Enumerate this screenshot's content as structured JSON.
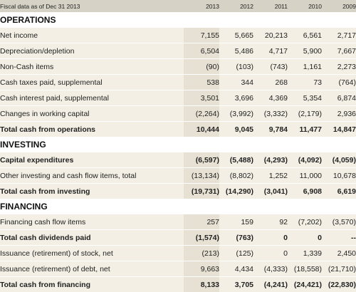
{
  "header": {
    "fiscal_label": "Fiscal data as of Dec 31 2013",
    "years": [
      "2013",
      "2012",
      "2011",
      "2010",
      "2009"
    ]
  },
  "sections": [
    {
      "title": "OPERATIONS",
      "rows": [
        {
          "label": "Net income",
          "values": [
            "7,155",
            "5,665",
            "20,213",
            "6,561",
            "2,717"
          ],
          "bold": false
        },
        {
          "label": "Depreciation/depletion",
          "values": [
            "6,504",
            "5,486",
            "4,717",
            "5,900",
            "7,667"
          ],
          "bold": false
        },
        {
          "label": "Non-Cash items",
          "values": [
            "(90)",
            "(103)",
            "(743)",
            "1,161",
            "2,273"
          ],
          "bold": false
        },
        {
          "label": "Cash taxes paid, supplemental",
          "values": [
            "538",
            "344",
            "268",
            "73",
            "(764)"
          ],
          "bold": false
        },
        {
          "label": "Cash interest paid, supplemental",
          "values": [
            "3,501",
            "3,696",
            "4,369",
            "5,354",
            "6,874"
          ],
          "bold": false
        },
        {
          "label": "Changes in working capital",
          "values": [
            "(2,264)",
            "(3,992)",
            "(3,332)",
            "(2,179)",
            "2,936"
          ],
          "bold": false
        },
        {
          "label": "Total cash from operations",
          "values": [
            "10,444",
            "9,045",
            "9,784",
            "11,477",
            "14,847"
          ],
          "bold": true,
          "total": true
        }
      ]
    },
    {
      "title": "INVESTING",
      "rows": [
        {
          "label": "Capital expenditures",
          "values": [
            "(6,597)",
            "(5,488)",
            "(4,293)",
            "(4,092)",
            "(4,059)"
          ],
          "bold": true
        },
        {
          "label": "Other investing and cash flow items, total",
          "values": [
            "(13,134)",
            "(8,802)",
            "1,252",
            "11,000",
            "10,678"
          ],
          "bold": false
        },
        {
          "label": "Total cash from investing",
          "values": [
            "(19,731)",
            "(14,290)",
            "(3,041)",
            "6,908",
            "6,619"
          ],
          "bold": true,
          "total": true
        }
      ]
    },
    {
      "title": "FINANCING",
      "rows": [
        {
          "label": "Financing cash flow items",
          "values": [
            "257",
            "159",
            "92",
            "(7,202)",
            "(3,570)"
          ],
          "bold": false
        },
        {
          "label": "Total cash dividends paid",
          "values": [
            "(1,574)",
            "(763)",
            "0",
            "0",
            "--"
          ],
          "bold": true
        },
        {
          "label": "Issuance (retirement) of stock, net",
          "values": [
            "(213)",
            "(125)",
            "0",
            "1,339",
            "2,450"
          ],
          "bold": false
        },
        {
          "label": "Issuance (retirement) of debt, net",
          "values": [
            "9,663",
            "4,434",
            "(4,333)",
            "(18,558)",
            "(21,710)"
          ],
          "bold": false
        },
        {
          "label": "Total cash from financing",
          "values": [
            "8,133",
            "3,705",
            "(4,241)",
            "(24,421)",
            "(22,830)"
          ],
          "bold": true,
          "total": true
        }
      ]
    }
  ]
}
